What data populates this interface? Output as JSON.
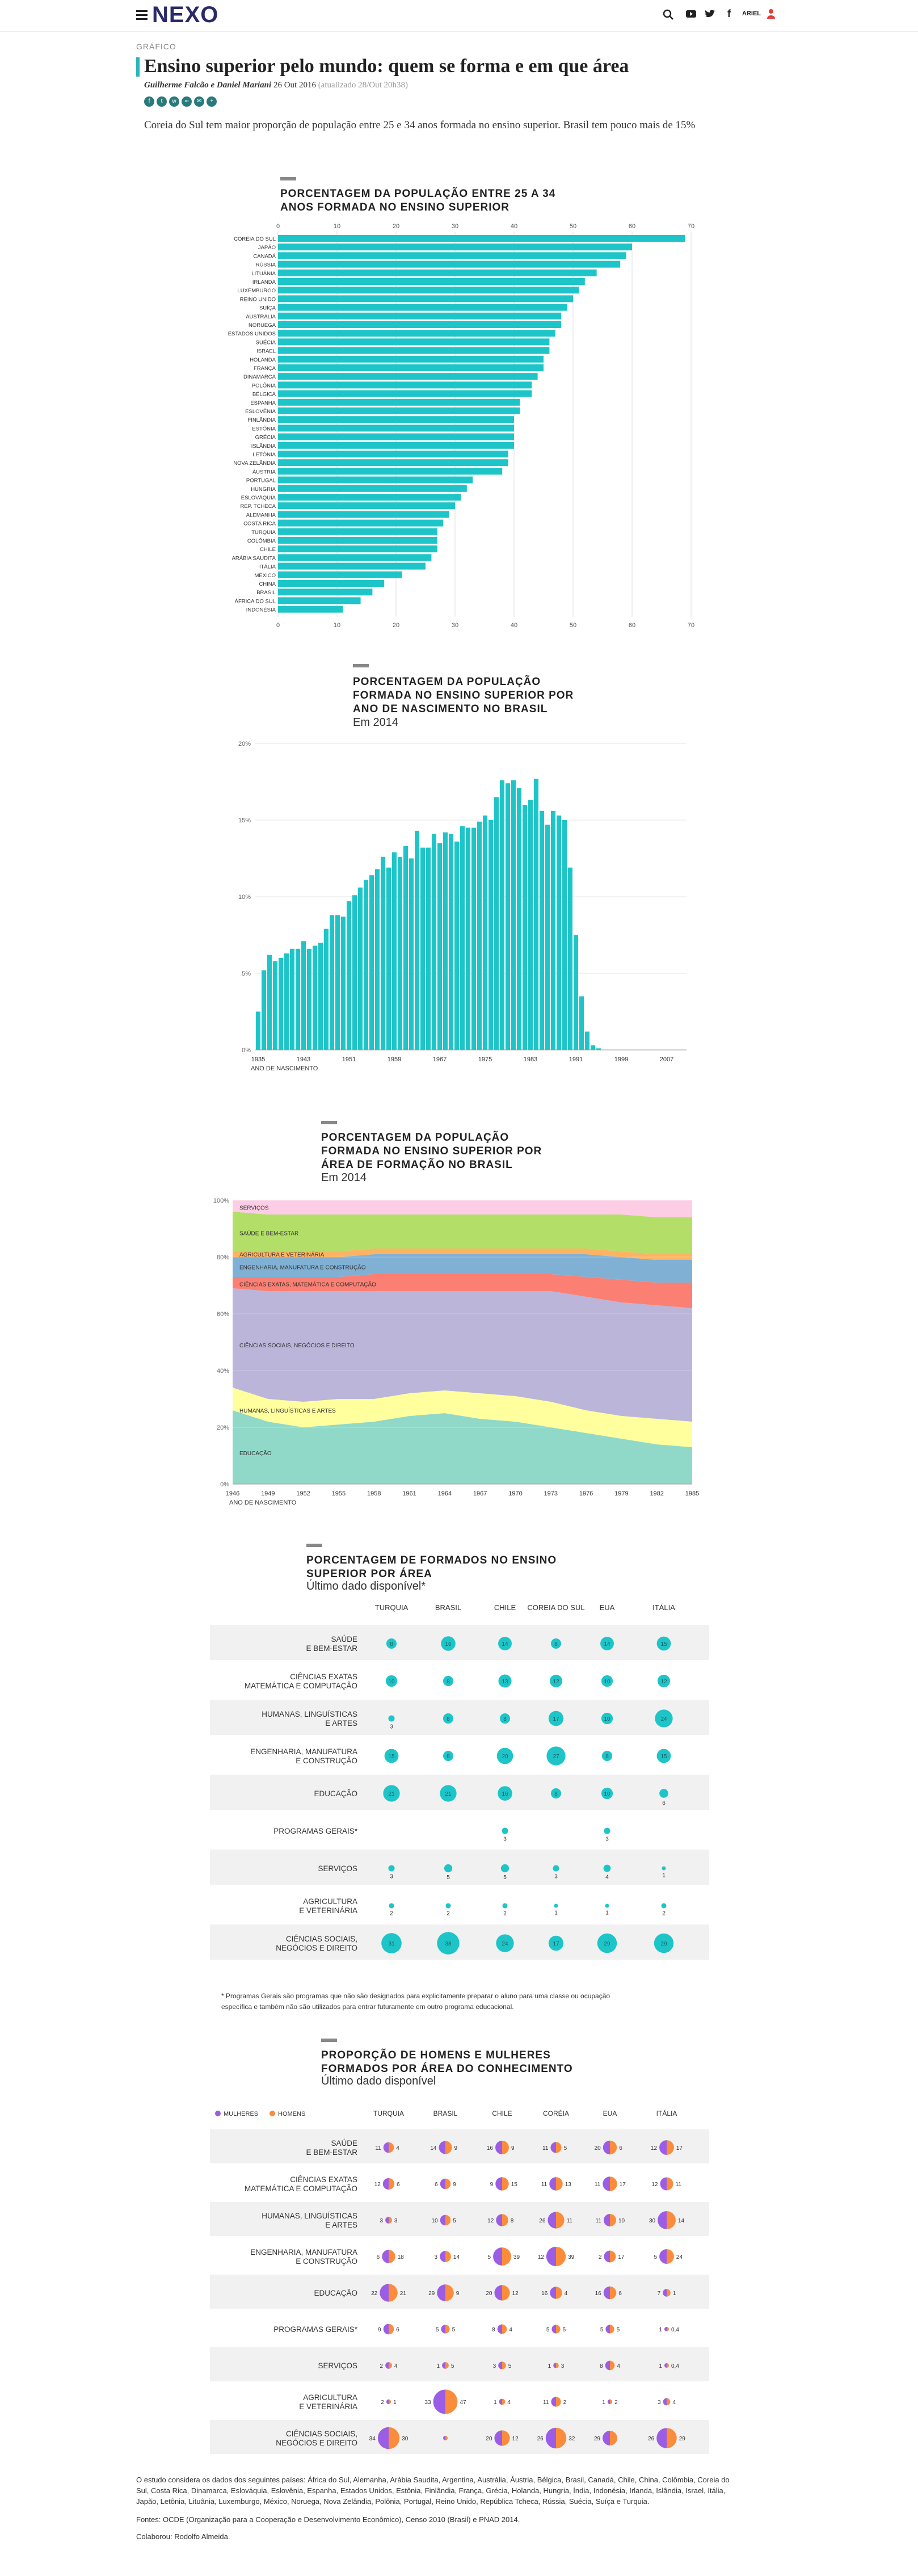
{
  "header": {
    "logo": "NEXO",
    "user": "ARIEL"
  },
  "article": {
    "section": "GRÁFICO",
    "title": "Ensino superior pelo mundo: quem se forma e em que área",
    "authors": "Guilherme Falcão e Daniel Mariani",
    "date": "26 Out 2016",
    "updated": "(atualizado 28/Out 20h38)",
    "lead": "Coreia do Sul tem maior proporção de população entre 25 e 34 anos formada no ensino superior. Brasil tem pouco mais de 15%"
  },
  "chart_data": [
    {
      "type": "bar",
      "orientation": "horizontal",
      "title_lines": [
        "PORCENTAGEM DA POPULAÇÃO ENTRE 25 A 34",
        "ANOS FORMADA NO ENSINO SUPERIOR"
      ],
      "xlim": [
        0,
        70
      ],
      "ticks": [
        0,
        10,
        20,
        30,
        40,
        50,
        60,
        70
      ],
      "tick_labels": [
        "0",
        "10",
        "20",
        "30",
        "40",
        "50",
        "60",
        "70"
      ],
      "color": "#1ec5c8",
      "categories": [
        "COREIA DO SUL",
        "JAPÃO",
        "CANADÁ",
        "RÚSSIA",
        "LITUÂNIA",
        "IRLANDA",
        "LUXEMBURGO",
        "REINO UNIDO",
        "SUÍÇA",
        "AUSTRÁLIA",
        "NORUEGA",
        "ESTADOS UNIDOS",
        "SUÉCIA",
        "ISRAEL",
        "HOLANDA",
        "FRANÇA",
        "DINAMARCA",
        "POLÔNIA",
        "BÉLGICA",
        "ESPANHA",
        "ESLOVÊNIA",
        "FINLÂNDIA",
        "ESTÔNIA",
        "GRÉCIA",
        "ISLÂNDIA",
        "LETÔNIA",
        "NOVA ZELÂNDIA",
        "ÁUSTRIA",
        "PORTUGAL",
        "HUNGRIA",
        "ESLOVÁQUIA",
        "REP. TCHECA",
        "ALEMANHA",
        "COSTA RICA",
        "TURQUIA",
        "COLÔMBIA",
        "CHILE",
        "ARÁBIA SAUDITA",
        "ITÁLIA",
        "MÉXICO",
        "CHINA",
        "BRASIL",
        "ÁFRICA DO SUL",
        "INDONÉSIA"
      ],
      "values": [
        69,
        60,
        59,
        58,
        54,
        52,
        51,
        50,
        49,
        48,
        48,
        47,
        46,
        46,
        45,
        45,
        44,
        43,
        43,
        41,
        41,
        40,
        40,
        40,
        40,
        39,
        39,
        38,
        33,
        32,
        31,
        30,
        29,
        28,
        27,
        27,
        27,
        26,
        25,
        21,
        18,
        16,
        14,
        11
      ]
    },
    {
      "type": "bar",
      "title_lines": [
        "PORCENTAGEM DA POPULAÇÃO",
        "FORMADA NO ENSINO SUPERIOR POR",
        "ANO DE NASCIMENTO NO BRASIL"
      ],
      "subtitle": "Em 2014",
      "xlabel": "ANO DE NASCIMENTO",
      "ylim": [
        0,
        20
      ],
      "yticks": [
        0,
        5,
        10,
        15,
        20
      ],
      "ytick_labels": [
        "0%",
        "5%",
        "10%",
        "15%",
        "20%"
      ],
      "xtick_years": [
        1935,
        1943,
        1951,
        1959,
        1967,
        1975,
        1983,
        1991,
        1999,
        2007
      ],
      "color": "#1ec5c8",
      "x": [
        1935,
        1936,
        1937,
        1938,
        1939,
        1940,
        1941,
        1942,
        1943,
        1944,
        1945,
        1946,
        1947,
        1948,
        1949,
        1950,
        1951,
        1952,
        1953,
        1954,
        1955,
        1956,
        1957,
        1958,
        1959,
        1960,
        1961,
        1962,
        1963,
        1964,
        1965,
        1966,
        1967,
        1968,
        1969,
        1970,
        1971,
        1972,
        1973,
        1974,
        1975,
        1976,
        1977,
        1978,
        1979,
        1980,
        1981,
        1982,
        1983,
        1984,
        1985,
        1986,
        1987,
        1988,
        1989,
        1990,
        1991,
        1992,
        1993,
        1994,
        1995,
        1996,
        1997,
        1998,
        1999,
        2000,
        2001,
        2002,
        2003,
        2004,
        2005,
        2006,
        2007,
        2008,
        2009,
        2010
      ],
      "values": [
        2.5,
        5.2,
        6.2,
        5.8,
        6.0,
        6.3,
        6.6,
        6.6,
        7.1,
        6.6,
        6.8,
        7.0,
        7.9,
        8.8,
        8.8,
        8.7,
        9.7,
        10.1,
        10.6,
        11.1,
        11.4,
        11.8,
        12.6,
        11.9,
        12.9,
        12.6,
        13.3,
        12.5,
        14.3,
        13.2,
        13.2,
        14.1,
        13.5,
        14.2,
        14.1,
        13.6,
        14.6,
        14.5,
        14.5,
        14.9,
        15.3,
        15.0,
        16.5,
        17.6,
        17.4,
        17.6,
        17.1,
        16.0,
        16.3,
        17.7,
        15.6,
        14.7,
        15.6,
        15.3,
        15.0,
        11.9,
        7.5,
        3.5,
        1.2,
        0.3,
        0.1,
        0,
        0,
        0,
        0,
        0,
        0,
        0,
        0,
        0,
        0,
        0,
        0,
        0,
        0,
        0
      ]
    },
    {
      "type": "area",
      "stacked": true,
      "title_lines": [
        "PORCENTAGEM DA POPULAÇÃO",
        "FORMADA NO ENSINO SUPERIOR POR",
        "ÁREA DE FORMAÇÃO NO BRASIL"
      ],
      "subtitle": "Em 2014",
      "xlabel": "ANO DE NASCIMENTO",
      "ylim": [
        0,
        100
      ],
      "yticks": [
        0,
        20,
        40,
        60,
        80,
        100
      ],
      "ytick_labels": [
        "0%",
        "20%",
        "40%",
        "60%",
        "80%",
        "100%"
      ],
      "xtick_years": [
        1946,
        1949,
        1952,
        1955,
        1958,
        1961,
        1964,
        1967,
        1970,
        1973,
        1976,
        1979,
        1982,
        1985
      ],
      "x": [
        1946,
        1949,
        1952,
        1955,
        1958,
        1961,
        1964,
        1967,
        1970,
        1973,
        1976,
        1979,
        1982,
        1985
      ],
      "series": [
        {
          "name": "EDUCAÇÃO",
          "color": "#90d9c8",
          "values": [
            26,
            22,
            20,
            21,
            22,
            24,
            25,
            23,
            22,
            20,
            18,
            16,
            14,
            13
          ]
        },
        {
          "name": "HUMANAS, LINGUÍSTICAS E ARTES",
          "color": "#ffff9e",
          "values": [
            8,
            8,
            9,
            9,
            8,
            8,
            8,
            9,
            9,
            9,
            8,
            8,
            9,
            9
          ]
        },
        {
          "name": "CIÊNCIAS SOCIAIS, NEGÓCIOS E DIREITO",
          "color": "#bbb5d9",
          "values": [
            35,
            38,
            39,
            38,
            38,
            36,
            35,
            36,
            37,
            39,
            40,
            40,
            40,
            40
          ]
        },
        {
          "name": "CIÊNCIAS EXATAS, MATEMÁTICA E COMPUTAÇÃO",
          "color": "#fb7f73",
          "values": [
            4,
            5,
            5,
            5,
            6,
            6,
            6,
            6,
            6,
            6,
            7,
            8,
            8,
            9
          ]
        },
        {
          "name": "ENGENHARIA, MANUFATURA E CONSTRUÇÃO",
          "color": "#80b1d5",
          "values": [
            7,
            7,
            7,
            7,
            7,
            7,
            7,
            7,
            7,
            7,
            8,
            8,
            8,
            8
          ]
        },
        {
          "name": "AGRICULTURA E VETERINÁRIA",
          "color": "#fdb462",
          "values": [
            2,
            2,
            2,
            2,
            2,
            2,
            2,
            2,
            2,
            2,
            2,
            2,
            2,
            2
          ]
        },
        {
          "name": "SAÚDE E BEM-ESTAR",
          "color": "#b3de68",
          "values": [
            14,
            13,
            13,
            13,
            12,
            12,
            12,
            12,
            12,
            12,
            12,
            13,
            13,
            13
          ]
        },
        {
          "name": "SERVIÇOS",
          "color": "#fccde5",
          "values": [
            4,
            5,
            5,
            5,
            5,
            5,
            5,
            5,
            5,
            5,
            5,
            5,
            6,
            6
          ]
        }
      ]
    },
    {
      "type": "table",
      "title_lines": [
        "PORCENTAGEM DE FORMADOS NO ENSINO",
        "SUPERIOR POR ÁREA"
      ],
      "subtitle": "Último dado disponível*",
      "countries": [
        "TURQUIA",
        "BRASIL",
        "CHILE",
        "COREIA DO SUL",
        "EUA",
        "ITÁLIA"
      ],
      "rows": [
        {
          "label": [
            "SAÚDE",
            "E BEM-ESTAR"
          ],
          "values": [
            8,
            16,
            14,
            8,
            14,
            15
          ]
        },
        {
          "label": [
            "CIÊNCIAS EXATAS",
            "MATEMÁTICA E COMPUTAÇÃO"
          ],
          "values": [
            10,
            8,
            13,
            12,
            10,
            12
          ]
        },
        {
          "label": [
            "HUMANAS, LINGUÍSTICAS",
            "E ARTES"
          ],
          "values": [
            3,
            8,
            8,
            17,
            10,
            24
          ]
        },
        {
          "label": [
            "ENGENHARIA, MANUFATURA",
            "E CONSTRUÇÃO"
          ],
          "values": [
            15,
            8,
            20,
            27,
            8,
            15
          ]
        },
        {
          "label": [
            "EDUCAÇÃO"
          ],
          "values": [
            21,
            21,
            16,
            8,
            10,
            6
          ]
        },
        {
          "label": [
            "PROGRAMAS GERAIS*"
          ],
          "values": [
            0,
            0,
            3,
            0,
            3,
            0
          ]
        },
        {
          "label": [
            "SERVIÇOS"
          ],
          "values": [
            3,
            5,
            5,
            3,
            4,
            1
          ]
        },
        {
          "label": [
            "AGRICULTURA",
            "E VETERINÁRIA"
          ],
          "values": [
            2,
            2,
            2,
            1,
            1,
            2
          ]
        },
        {
          "label": [
            "CIÊNCIAS SOCIAIS,",
            "NEGÓCIOS E DIREITO"
          ],
          "values": [
            31,
            38,
            24,
            17,
            29,
            29
          ]
        }
      ],
      "footnote": [
        "* Programas Gerais são programas que não são designados para explicitamente preparar o aluno para uma classe ou ocupação",
        "específica e também não são utilizados para entrar futuramente em outro programa educacional."
      ]
    },
    {
      "type": "table",
      "title_lines": [
        "PROPORÇÃO DE HOMENS E MULHERES",
        "FORMADOS POR ÁREA DO CONHECIMENTO"
      ],
      "subtitle": "Último dado disponível",
      "legend": {
        "women": "MULHERES",
        "men": "HOMENS",
        "women_color": "#9b5de5",
        "men_color": "#fb8c3c"
      },
      "countries": [
        "TURQUIA",
        "BRASIL",
        "CHILE",
        "CORÉIA",
        "EUA",
        "ITÁLIA"
      ],
      "rows": [
        {
          "label": [
            "SAÚDE",
            "E BEM-ESTAR"
          ],
          "women": [
            11,
            14,
            16,
            11,
            20,
            12
          ],
          "men": [
            4,
            9,
            9,
            5,
            6,
            17
          ]
        },
        {
          "label": [
            "CIÊNCIAS EXATAS",
            "MATEMÁTICA E COMPUTAÇÃO"
          ],
          "women": [
            12,
            6,
            9,
            11,
            11,
            12
          ],
          "men": [
            6,
            9,
            15,
            13,
            17,
            11
          ]
        },
        {
          "label": [
            "HUMANAS, LINGUÍSTICAS",
            "E ARTES"
          ],
          "women": [
            3,
            10,
            12,
            26,
            11,
            30
          ],
          "men": [
            3,
            5,
            8,
            11,
            10,
            14
          ]
        },
        {
          "label": [
            "ENGENHARIA, MANUFATURA",
            "E CONSTRUÇÃO"
          ],
          "women": [
            6,
            3,
            5,
            12,
            2,
            5
          ],
          "men": [
            18,
            14,
            39,
            39,
            17,
            24
          ]
        },
        {
          "label": [
            "EDUCAÇÃO"
          ],
          "women": [
            22,
            29,
            20,
            16,
            16,
            7
          ],
          "men": [
            21,
            9,
            12,
            4,
            6,
            1
          ]
        },
        {
          "label": [
            "PROGRAMAS GERAIS*"
          ],
          "women": [
            9,
            5,
            8,
            5,
            5,
            1
          ],
          "men": [
            6,
            5,
            4,
            5,
            5,
            "0,4"
          ]
        },
        {
          "label": [
            "SERVIÇOS"
          ],
          "women": [
            2,
            1,
            3,
            1,
            8,
            1
          ],
          "men": [
            4,
            5,
            5,
            3,
            4,
            "0,4"
          ]
        },
        {
          "label": [
            "AGRICULTURA",
            "E VETERINÁRIA"
          ],
          "women": [
            2,
            33,
            1,
            11,
            1,
            3
          ],
          "men": [
            1,
            47,
            4,
            2,
            2,
            4
          ]
        },
        {
          "label": [
            "CIÊNCIAS SOCIAIS,",
            "NEGÓCIOS E DIREITO"
          ],
          "women": [
            34,
            "",
            20,
            26,
            29,
            26
          ],
          "men": [
            30,
            "",
            12,
            32,
            "",
            29
          ]
        }
      ]
    }
  ],
  "footer": {
    "study": [
      "O estudo considera os dados dos seguintes países: África do Sul, Alemanha, Arábia Saudita, Argentina, Austrália, Áustria, Bélgica, Brasil, Canadá, Chile, China, Colômbia, Coreia do",
      "Sul, Costa Rica, Dinamarca, Eslováquia, Eslovênia, Espanha, Estados Unidos, Estônia, Finlândia, França, Grécia, Holanda, Hungria, Índia, Indonésia, Irlanda, Islândia, Israel, Itália,",
      "Japão, Letônia, Lituânia, Luxemburgo, México, Noruega, Nova Zelândia, Polônia, Portugal, Reino Unido, República Tcheca, Rússia, Suécia, Suíça e Turquia."
    ],
    "sources": "Fontes: OCDE (Organização para a Cooperação e Desenvolvimento Econômico), Censo 2010 (Brasil) e PNAD 2014.",
    "credits": "Colaborou: Rodolfo Almeida."
  }
}
